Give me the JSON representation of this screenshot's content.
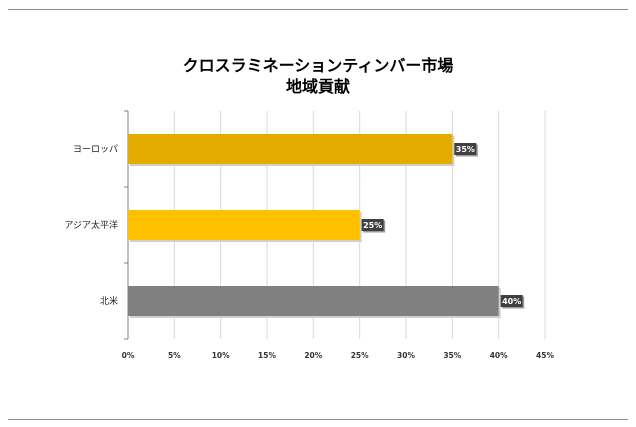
{
  "chart_data": {
    "type": "bar",
    "orientation": "horizontal",
    "title": "クロスラミネーションティンバー市場",
    "subtitle": "地域貢献",
    "categories": [
      "ヨーロッパ",
      "アジア太平洋",
      "北米"
    ],
    "values": [
      35,
      25,
      40
    ],
    "value_labels": [
      "35%",
      "25%",
      "40%"
    ],
    "colors": [
      "#E5AC00",
      "#FFC000",
      "#808080"
    ],
    "xlim": [
      0,
      45
    ],
    "xticks": [
      0,
      5,
      10,
      15,
      20,
      25,
      30,
      35,
      40,
      45
    ],
    "xtick_labels": [
      "0%",
      "5%",
      "10%",
      "15%",
      "20%",
      "25%",
      "30%",
      "35%",
      "40%",
      "45%"
    ],
    "grid": true,
    "legend": "none"
  }
}
